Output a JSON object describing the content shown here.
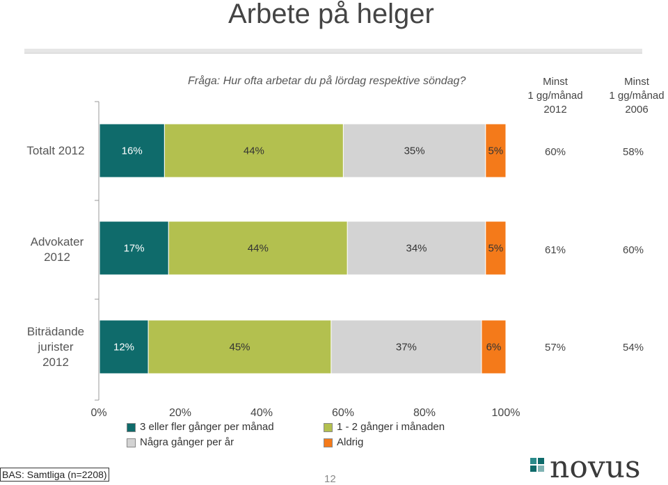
{
  "slide": {
    "title": "Arbete på helger",
    "question": "Fråga: Hur ofta arbetar du på lördag respektive söndag?",
    "footer": "BAS: Samtliga (n=2208)",
    "page_number": "12",
    "logo_text": "novus"
  },
  "columns": {
    "col2012": [
      "Minst",
      "1 gg/månad",
      "2012"
    ],
    "col2006": [
      "Minst",
      "1 gg/månad",
      "2006"
    ]
  },
  "rows": [
    {
      "label": [
        "Totalt 2012"
      ],
      "s2012": "60%",
      "s2006": "58%"
    },
    {
      "label": [
        "Advokater",
        "2012"
      ],
      "s2012": "61%",
      "s2006": "60%"
    },
    {
      "label": [
        "Biträdande",
        "jurister",
        "2012"
      ],
      "s2012": "57%",
      "s2006": "54%"
    }
  ],
  "chart_data": {
    "type": "bar",
    "orientation": "horizontal-stacked-100",
    "categories": [
      "Totalt 2012",
      "Advokater 2012",
      "Biträdande jurister 2012"
    ],
    "series": [
      {
        "name": "3 eller fler gånger per månad",
        "values": [
          16,
          17,
          12
        ],
        "labels": [
          "16%",
          "17%",
          "12%"
        ],
        "color": "#0f6b6b"
      },
      {
        "name": "1 - 2 gånger i månaden",
        "values": [
          44,
          44,
          45
        ],
        "labels": [
          "44%",
          "44%",
          "45%"
        ],
        "color": "#b3c04f"
      },
      {
        "name": "Några gånger per år",
        "values": [
          35,
          34,
          37
        ],
        "labels": [
          "35%",
          "34%",
          "37%"
        ],
        "color": "#d3d3d3"
      },
      {
        "name": "Aldrig",
        "values": [
          5,
          5,
          6
        ],
        "labels": [
          "5%",
          "5%",
          "6%"
        ],
        "color": "#f47a1a"
      }
    ],
    "xlim": [
      0,
      100
    ],
    "xticks": [
      "0%",
      "20%",
      "40%",
      "60%",
      "80%",
      "100%"
    ],
    "legend": "bottom"
  }
}
